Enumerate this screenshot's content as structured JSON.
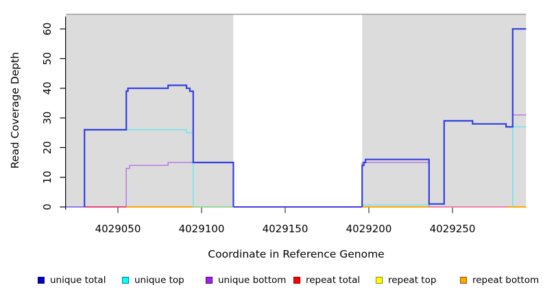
{
  "figure": {
    "kind": "R-style coverage plot",
    "background": "#ffffff",
    "plot_background": "#DCDCDC",
    "plot_top_border_color": "#A3A3A3",
    "axis_color": "#000000",
    "x_tick_color": "#555555"
  },
  "chart_data": {
    "type": "line",
    "subtype": "step-coverage",
    "title": "",
    "xlabel": "Coordinate in Reference Genome",
    "ylabel": "Read Coverage Depth",
    "x_range": [
      4029019,
      4029294
    ],
    "y_range": [
      0,
      62
    ],
    "grid": false,
    "legend_position": "bottom",
    "x_ticks": [
      4029050,
      4029100,
      4029150,
      4029200,
      4029250
    ],
    "y_ticks": [
      0,
      10,
      20,
      30,
      40,
      50,
      60
    ],
    "masked_region": {
      "start": 4029119,
      "end": 4029196,
      "fill": "#ffffff"
    },
    "series": [
      {
        "name": "unique total",
        "color": "#2F3FE0",
        "width": 2.2,
        "segments": [
          [
            [
              4029030,
              0
            ],
            [
              4029030,
              26
            ],
            [
              4029055,
              26
            ],
            [
              4029055,
              39
            ],
            [
              4029056,
              39
            ],
            [
              4029056,
              40
            ],
            [
              4029080,
              40
            ],
            [
              4029080,
              41
            ],
            [
              4029091,
              41
            ],
            [
              4029091,
              40
            ],
            [
              4029093,
              40
            ],
            [
              4029093,
              39
            ],
            [
              4029095,
              39
            ],
            [
              4029095,
              15
            ],
            [
              4029119,
              15
            ],
            [
              4029119,
              0
            ]
          ],
          [
            [
              4029196,
              0
            ],
            [
              4029196,
              14
            ],
            [
              4029197,
              14
            ],
            [
              4029197,
              15
            ],
            [
              4029198,
              15
            ],
            [
              4029198,
              16
            ],
            [
              4029236,
              16
            ],
            [
              4029236,
              1
            ],
            [
              4029245,
              1
            ],
            [
              4029245,
              29
            ],
            [
              4029262,
              29
            ],
            [
              4029262,
              28
            ],
            [
              4029282,
              28
            ],
            [
              4029282,
              27
            ],
            [
              4029286,
              27
            ],
            [
              4029286,
              60
            ],
            [
              4029294,
              60
            ]
          ]
        ]
      },
      {
        "name": "unique top",
        "color": "#6FE7EF",
        "width": 1.5,
        "segments": [
          [
            [
              4029030,
              0
            ],
            [
              4029030,
              26
            ],
            [
              4029091,
              26
            ],
            [
              4029091,
              25
            ],
            [
              4029095,
              25
            ],
            [
              4029095,
              0
            ]
          ],
          [
            [
              4029196,
              0
            ],
            [
              4029196,
              0.7
            ],
            [
              4029235,
              0.7
            ],
            [
              4029235,
              0
            ]
          ],
          [
            [
              4029286,
              0
            ],
            [
              4029286,
              27
            ],
            [
              4029294,
              27
            ]
          ]
        ]
      },
      {
        "name": "unique bottom",
        "color": "#B877E3",
        "width": 1.5,
        "segments": [
          [
            [
              4029055,
              0
            ],
            [
              4029055,
              13
            ],
            [
              4029057,
              13
            ],
            [
              4029057,
              14
            ],
            [
              4029080,
              14
            ],
            [
              4029080,
              15
            ],
            [
              4029119,
              15
            ],
            [
              4029119,
              0
            ]
          ],
          [
            [
              4029196,
              0
            ],
            [
              4029196,
              15
            ],
            [
              4029236,
              15
            ],
            [
              4029236,
              0
            ]
          ],
          [
            [
              4029286,
              0
            ],
            [
              4029286,
              31
            ],
            [
              4029294,
              31
            ]
          ]
        ]
      },
      {
        "name": "repeat total",
        "color": "#E0487A",
        "width": 1.6,
        "segments": [
          [
            [
              4029019,
              0
            ],
            [
              4029294,
              0
            ]
          ]
        ]
      },
      {
        "name": "repeat top",
        "color": "#FFFF00",
        "width": 1.6,
        "segments": [
          [
            [
              4029019,
              0
            ],
            [
              4029294,
              0
            ]
          ]
        ]
      },
      {
        "name": "repeat bottom",
        "color": "#FFA500",
        "width": 1.6,
        "segments": [
          [
            [
              4029019,
              0
            ],
            [
              4029294,
              0
            ]
          ]
        ]
      }
    ],
    "zero_line_segments": [
      {
        "from": 4029019,
        "to": 4029030,
        "color": "#8F7BEE"
      },
      {
        "from": 4029030,
        "to": 4029055,
        "color": "#E0487A"
      },
      {
        "from": 4029055,
        "to": 4029095,
        "color": "#FFA500"
      },
      {
        "from": 4029095,
        "to": 4029119,
        "color": "#96D896"
      },
      {
        "from": 4029119,
        "to": 4029196,
        "color": "#4638E0"
      },
      {
        "from": 4029196,
        "to": 4029236,
        "color": "#FFA500"
      },
      {
        "from": 4029236,
        "to": 4029283,
        "color": "#EE82A8"
      },
      {
        "from": 4029283,
        "to": 4029294,
        "color": "#FFA500"
      }
    ]
  },
  "legend": {
    "items": [
      {
        "label": "unique total",
        "fill": "#0000CD",
        "border": "#00006B"
      },
      {
        "label": "unique top",
        "fill": "#00FFFF",
        "border": "#007B8B"
      },
      {
        "label": "unique bottom",
        "fill": "#A020F0",
        "border": "#4B0A6B"
      },
      {
        "label": "repeat total",
        "fill": "#FF0000",
        "border": "#8B0000"
      },
      {
        "label": "repeat top",
        "fill": "#FFFF00",
        "border": "#8B8B00"
      },
      {
        "label": "repeat bottom",
        "fill": "#FFA500",
        "border": "#8B5500"
      }
    ]
  }
}
